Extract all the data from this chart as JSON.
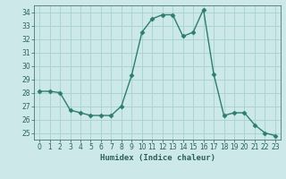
{
  "x": [
    0,
    1,
    2,
    3,
    4,
    5,
    6,
    7,
    8,
    9,
    10,
    11,
    12,
    13,
    14,
    15,
    16,
    17,
    18,
    19,
    20,
    21,
    22,
    23
  ],
  "y": [
    28.1,
    28.1,
    28.0,
    26.7,
    26.5,
    26.3,
    26.3,
    26.3,
    27.0,
    29.3,
    32.5,
    33.5,
    33.8,
    33.8,
    32.2,
    32.5,
    34.2,
    29.4,
    26.3,
    26.5,
    26.5,
    25.6,
    25.0,
    24.8
  ],
  "line_color": "#2d7d6e",
  "marker": "D",
  "marker_size": 2.5,
  "bg_color": "#cce8e8",
  "grid_color": "#aad4d4",
  "xlabel": "Humidex (Indice chaleur)",
  "ylim": [
    24.5,
    34.5
  ],
  "xlim": [
    -0.5,
    23.5
  ],
  "yticks": [
    25,
    26,
    27,
    28,
    29,
    30,
    31,
    32,
    33,
    34
  ],
  "xticks": [
    0,
    1,
    2,
    3,
    4,
    5,
    6,
    7,
    8,
    9,
    10,
    11,
    12,
    13,
    14,
    15,
    16,
    17,
    18,
    19,
    20,
    21,
    22,
    23
  ],
  "label_fontsize": 6.5,
  "tick_fontsize": 5.5,
  "tick_color": "#2d6060",
  "spine_color": "#2d6060",
  "line_width": 1.0
}
